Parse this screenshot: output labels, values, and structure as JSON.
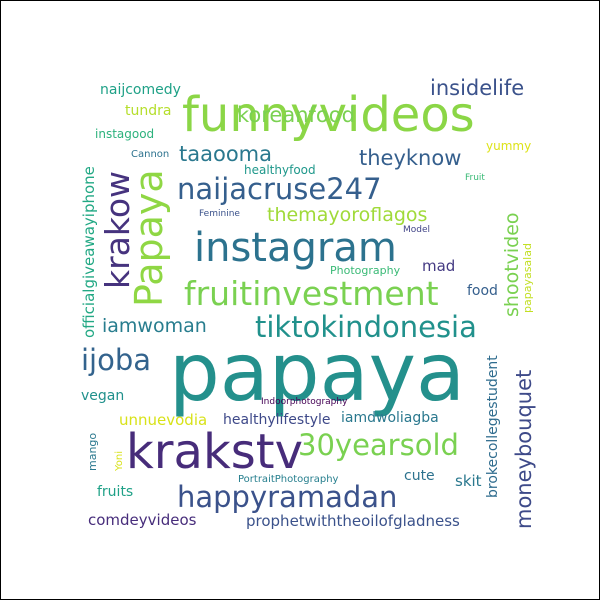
{
  "words": [
    {
      "text": "papaya",
      "size": 80,
      "color": "#24908c"
    },
    {
      "text": "funnyvideos",
      "size": 48,
      "color": "#8bd646"
    },
    {
      "text": "instagram",
      "size": 40,
      "color": "#2c728e"
    },
    {
      "text": "krakstv",
      "size": 48,
      "color": "#472c7a"
    },
    {
      "text": "fruitinvestment",
      "size": 33,
      "color": "#7ad151"
    },
    {
      "text": "naijacruse247",
      "size": 29,
      "color": "#355f8d"
    },
    {
      "text": "tiktokindonesia",
      "size": 29,
      "color": "#21918c"
    },
    {
      "text": "happyramadan",
      "size": 29,
      "color": "#3b528b"
    },
    {
      "text": "30yearsold",
      "size": 29,
      "color": "#7ad151"
    },
    {
      "text": "Papaya",
      "size": 38,
      "color": "#8fd744"
    },
    {
      "text": "krakow",
      "size": 33,
      "color": "#46337e"
    },
    {
      "text": "ijoba",
      "size": 29,
      "color": "#33638d"
    },
    {
      "text": "koreanfood",
      "size": 21,
      "color": "#7ad151"
    },
    {
      "text": "insidelife",
      "size": 21,
      "color": "#3b528b"
    },
    {
      "text": "taaooma",
      "size": 21,
      "color": "#2a788e"
    },
    {
      "text": "theyknow",
      "size": 21,
      "color": "#355f8d"
    },
    {
      "text": "themayoroflagos",
      "size": 19,
      "color": "#a0da39"
    },
    {
      "text": "iamwoman",
      "size": 19,
      "color": "#287d8e"
    },
    {
      "text": "moneybouquet",
      "size": 21,
      "color": "#3e4a89"
    },
    {
      "text": "shootvideo",
      "size": 19,
      "color": "#7ad151"
    },
    {
      "text": "officialgiveawayiphone",
      "size": 15,
      "color": "#22a884"
    },
    {
      "text": "brokecollegestudent",
      "size": 14,
      "color": "#2f6c8e"
    },
    {
      "text": "naijcomedy",
      "size": 14,
      "color": "#1fa187"
    },
    {
      "text": "tundra",
      "size": 14,
      "color": "#b5de2b"
    },
    {
      "text": "instagood",
      "size": 12,
      "color": "#2db27d"
    },
    {
      "text": "healthyfood",
      "size": 12,
      "color": "#1f988b"
    },
    {
      "text": "Cannon",
      "size": 10,
      "color": "#2c728e"
    },
    {
      "text": "yummy",
      "size": 12,
      "color": "#dde318"
    },
    {
      "text": "Fruit",
      "size": 9,
      "color": "#3aba76"
    },
    {
      "text": "Feminine",
      "size": 9,
      "color": "#3b528b"
    },
    {
      "text": "Model",
      "size": 9,
      "color": "#414487"
    },
    {
      "text": "Photography",
      "size": 11,
      "color": "#3aba76"
    },
    {
      "text": "papayasalad",
      "size": 11,
      "color": "#c2df23"
    },
    {
      "text": "mad",
      "size": 15,
      "color": "#443a83"
    },
    {
      "text": "food",
      "size": 14,
      "color": "#355f8d"
    },
    {
      "text": "vegan",
      "size": 14,
      "color": "#21918c"
    },
    {
      "text": "Indoorphotography",
      "size": 9,
      "color": "#440154"
    },
    {
      "text": "unnuevodia",
      "size": 15,
      "color": "#d8e219"
    },
    {
      "text": "healthylifestyle",
      "size": 14,
      "color": "#3e4989"
    },
    {
      "text": "iamdwoliagba",
      "size": 14,
      "color": "#2a788e"
    },
    {
      "text": "mango",
      "size": 11,
      "color": "#2a788e"
    },
    {
      "text": "Yoni",
      "size": 10,
      "color": "#d8e219"
    },
    {
      "text": "PortraitPhotography",
      "size": 10,
      "color": "#277f8e"
    },
    {
      "text": "cute",
      "size": 14,
      "color": "#2c728e"
    },
    {
      "text": "skit",
      "size": 15,
      "color": "#2a788e"
    },
    {
      "text": "fruits",
      "size": 14,
      "color": "#1fa187"
    },
    {
      "text": "comdeyvideos",
      "size": 15,
      "color": "#472d7b"
    },
    {
      "text": "prophetwiththeoilofgladness",
      "size": 15,
      "color": "#3b528b"
    }
  ]
}
